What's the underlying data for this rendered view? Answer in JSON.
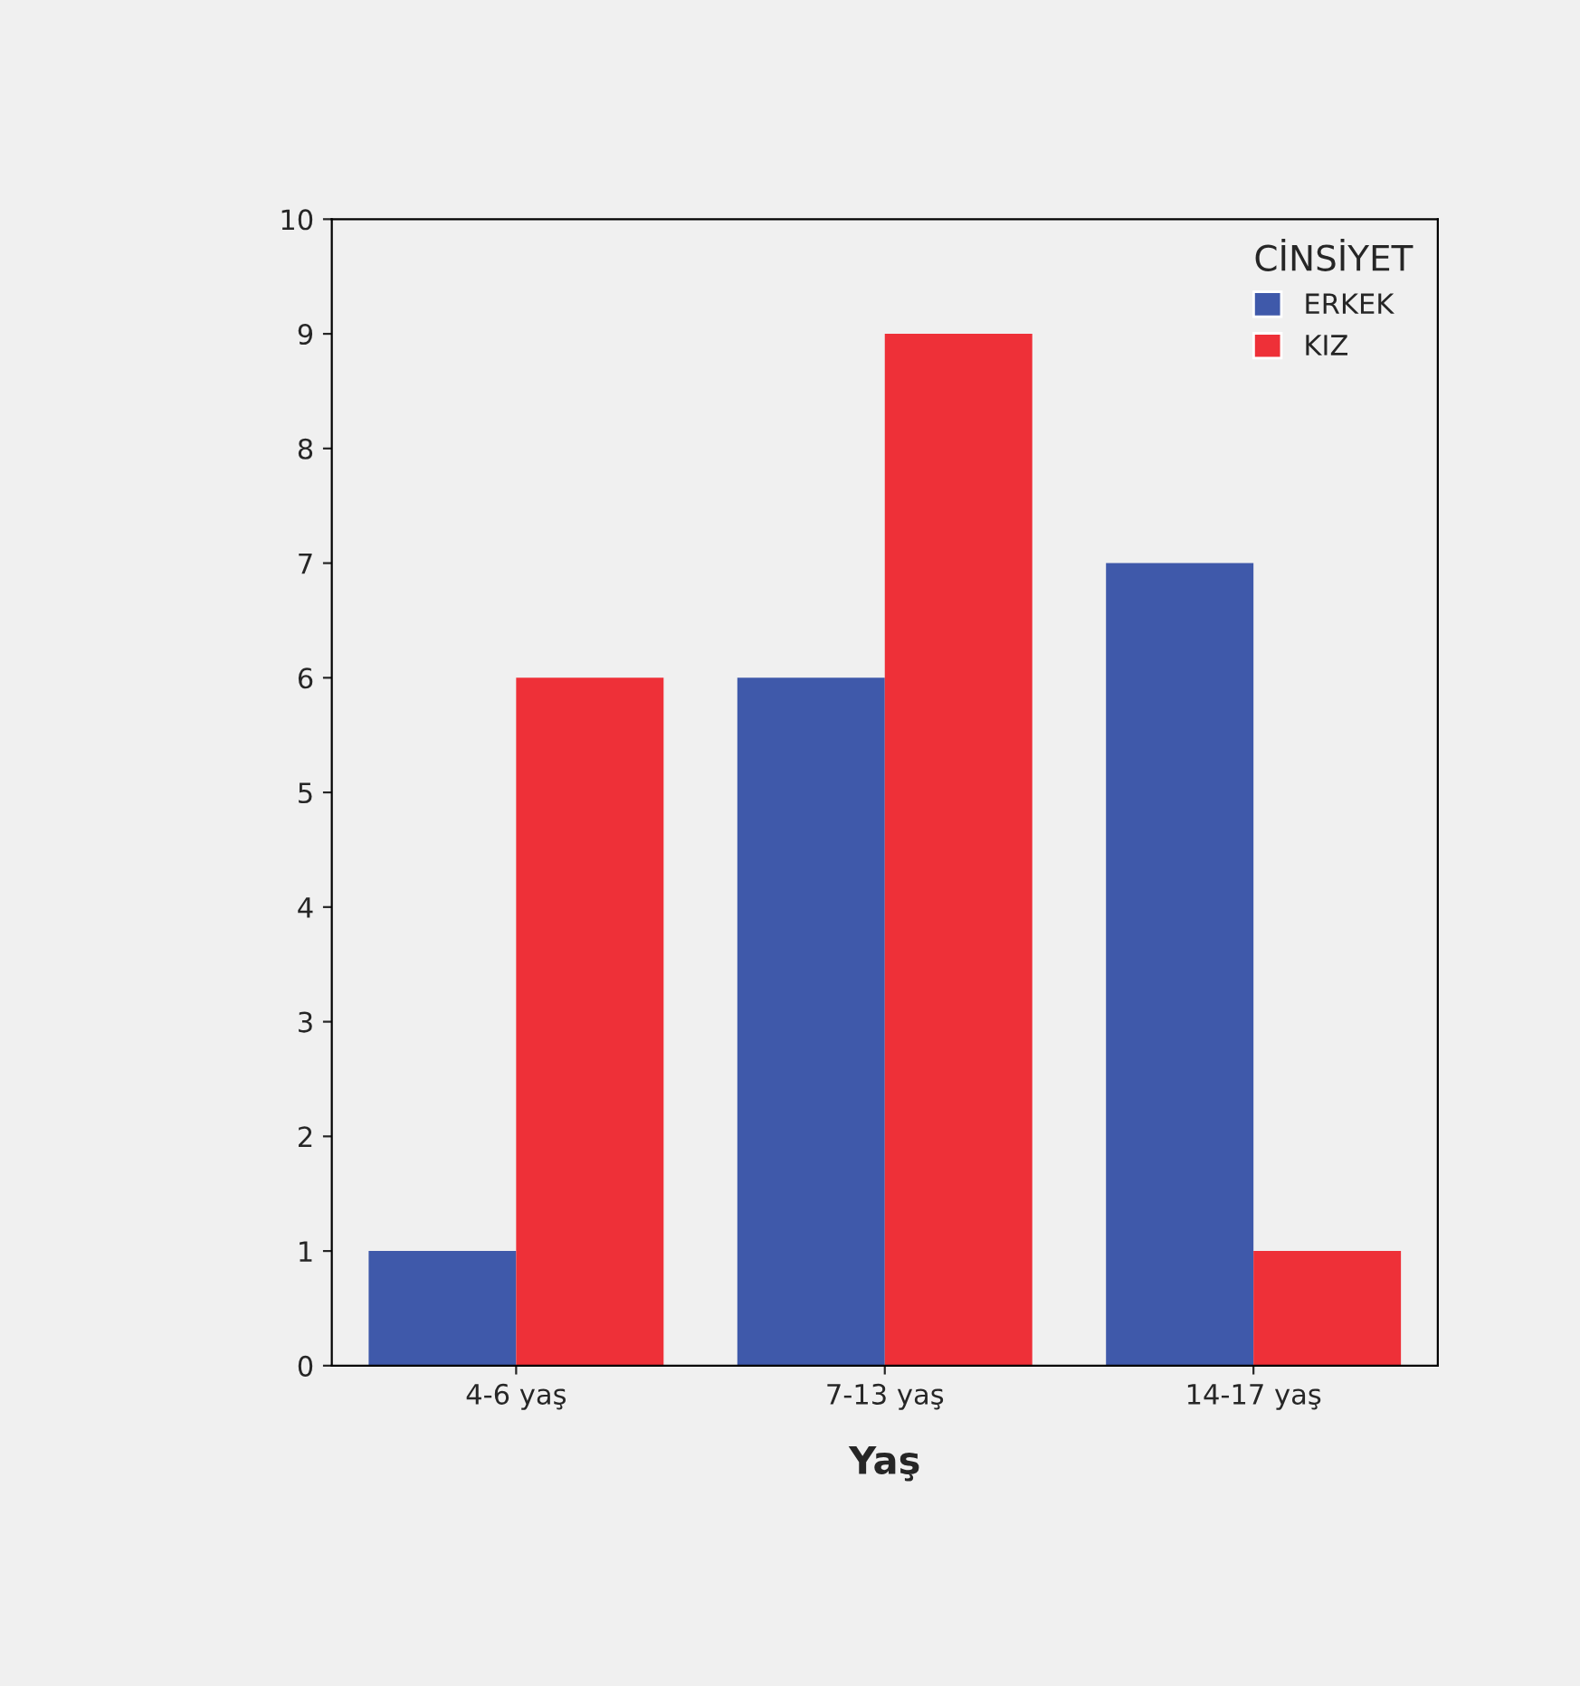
{
  "chart_data": {
    "type": "bar",
    "xlabel": "Yaş",
    "legend_title": "CİNSİYET",
    "categories": [
      "4-6 yaş",
      "7-13 yaş",
      "14-17 yaş"
    ],
    "series": [
      {
        "name": "ERKEK",
        "color": "#3f59aa",
        "values": [
          1,
          6,
          7
        ]
      },
      {
        "name": "KIZ",
        "color": "#ee3038",
        "values": [
          6,
          9,
          1
        ]
      }
    ],
    "ylim": [
      0,
      10
    ],
    "yticks": [
      0,
      1,
      2,
      3,
      4,
      5,
      6,
      7,
      8,
      9,
      10
    ],
    "grid": false,
    "legend": "top right"
  }
}
